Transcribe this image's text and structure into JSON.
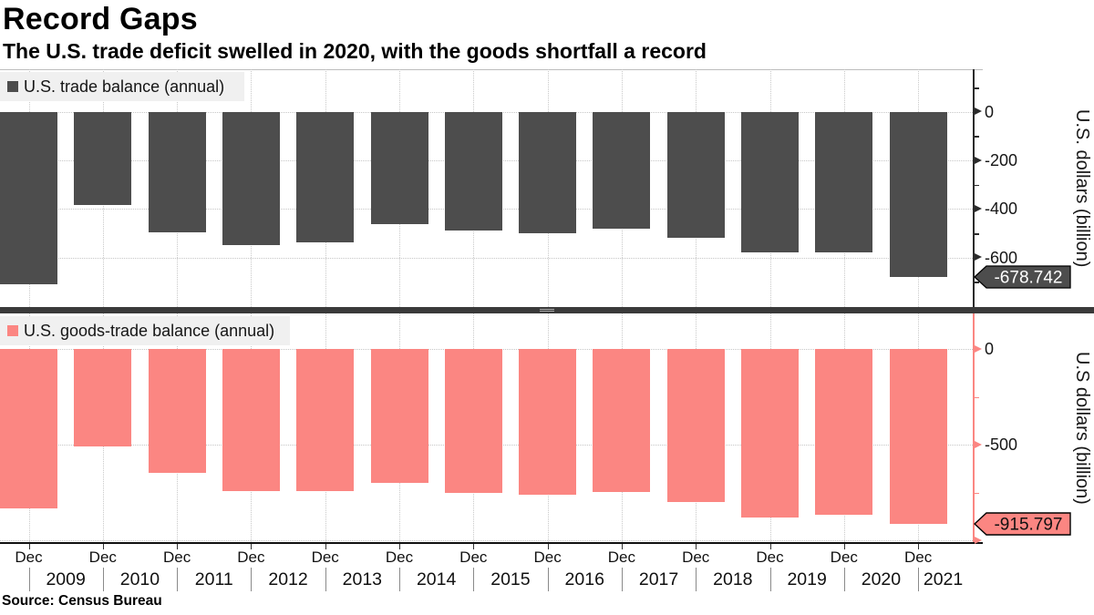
{
  "title": "Record Gaps",
  "subtitle": "The U.S. trade deficit swelled in 2020, with the goods shortfall a record",
  "source": "Source: Census Bureau",
  "colors": {
    "dark_series": "#4d4d4d",
    "pink_series": "#fb8682",
    "grid": "#c9c9c9",
    "axis_dark": "#2b2b2b",
    "legend_bg": "#f0f0f0",
    "text": "#111111"
  },
  "xaxis": {
    "tick_month": "Dec",
    "years": [
      "2009",
      "2010",
      "2011",
      "2012",
      "2013",
      "2014",
      "2015",
      "2016",
      "2017",
      "2018",
      "2019",
      "2020",
      "2021"
    ]
  },
  "chart_data": [
    {
      "type": "bar",
      "panel": "top",
      "legend": "U.S. trade balance (annual)",
      "ylabel": "U.S. dollars (billion)",
      "series_color": "#4d4d4d",
      "categories": [
        "Dec 2008",
        "Dec 2009",
        "Dec 2010",
        "Dec 2011",
        "Dec 2012",
        "Dec 2013",
        "Dec 2014",
        "Dec 2015",
        "Dec 2016",
        "Dec 2017",
        "Dec 2018",
        "Dec 2019",
        "Dec 2020"
      ],
      "values": [
        -708.7,
        -383.8,
        -494.7,
        -548.6,
        -537.6,
        -461.9,
        -490.2,
        -500.4,
        -481.2,
        -517.0,
        -579.9,
        -576.9,
        -678.742
      ],
      "yticks": [
        {
          "label": "0",
          "value": 0
        },
        {
          "label": "-200",
          "value": -200
        },
        {
          "label": "-400",
          "value": -400
        },
        {
          "label": "-600",
          "value": -600
        }
      ],
      "minor_ticks": [
        100,
        -100,
        -300,
        -500,
        -700
      ],
      "last_value_label": "-678.742",
      "last_value_text_color": "#ffffff",
      "ylim": [
        175,
        -803
      ],
      "grid": "dotted",
      "legend_position": "top-left"
    },
    {
      "type": "bar",
      "panel": "bottom",
      "legend": "U.S. goods-trade balance (annual)",
      "ylabel": "U.S dollars (billion)",
      "series_color": "#fb8682",
      "categories": [
        "Dec 2008",
        "Dec 2009",
        "Dec 2010",
        "Dec 2011",
        "Dec 2012",
        "Dec 2013",
        "Dec 2014",
        "Dec 2015",
        "Dec 2016",
        "Dec 2017",
        "Dec 2018",
        "Dec 2019",
        "Dec 2020"
      ],
      "values": [
        -832.5,
        -509.7,
        -648.7,
        -740.6,
        -741.2,
        -702.2,
        -752.5,
        -762.5,
        -749.8,
        -799.3,
        -880.3,
        -864.3,
        -915.797
      ],
      "yticks": [
        {
          "label": "0",
          "value": 0
        },
        {
          "label": "-500",
          "value": -500
        },
        {
          "label": "",
          "value": -1000
        }
      ],
      "minor_ticks": [
        -250,
        -750
      ],
      "last_value_label": "-915.797",
      "last_value_text_color": "#111111",
      "ylim": [
        190,
        -1019
      ],
      "grid": "dotted",
      "legend_position": "top-left"
    }
  ]
}
